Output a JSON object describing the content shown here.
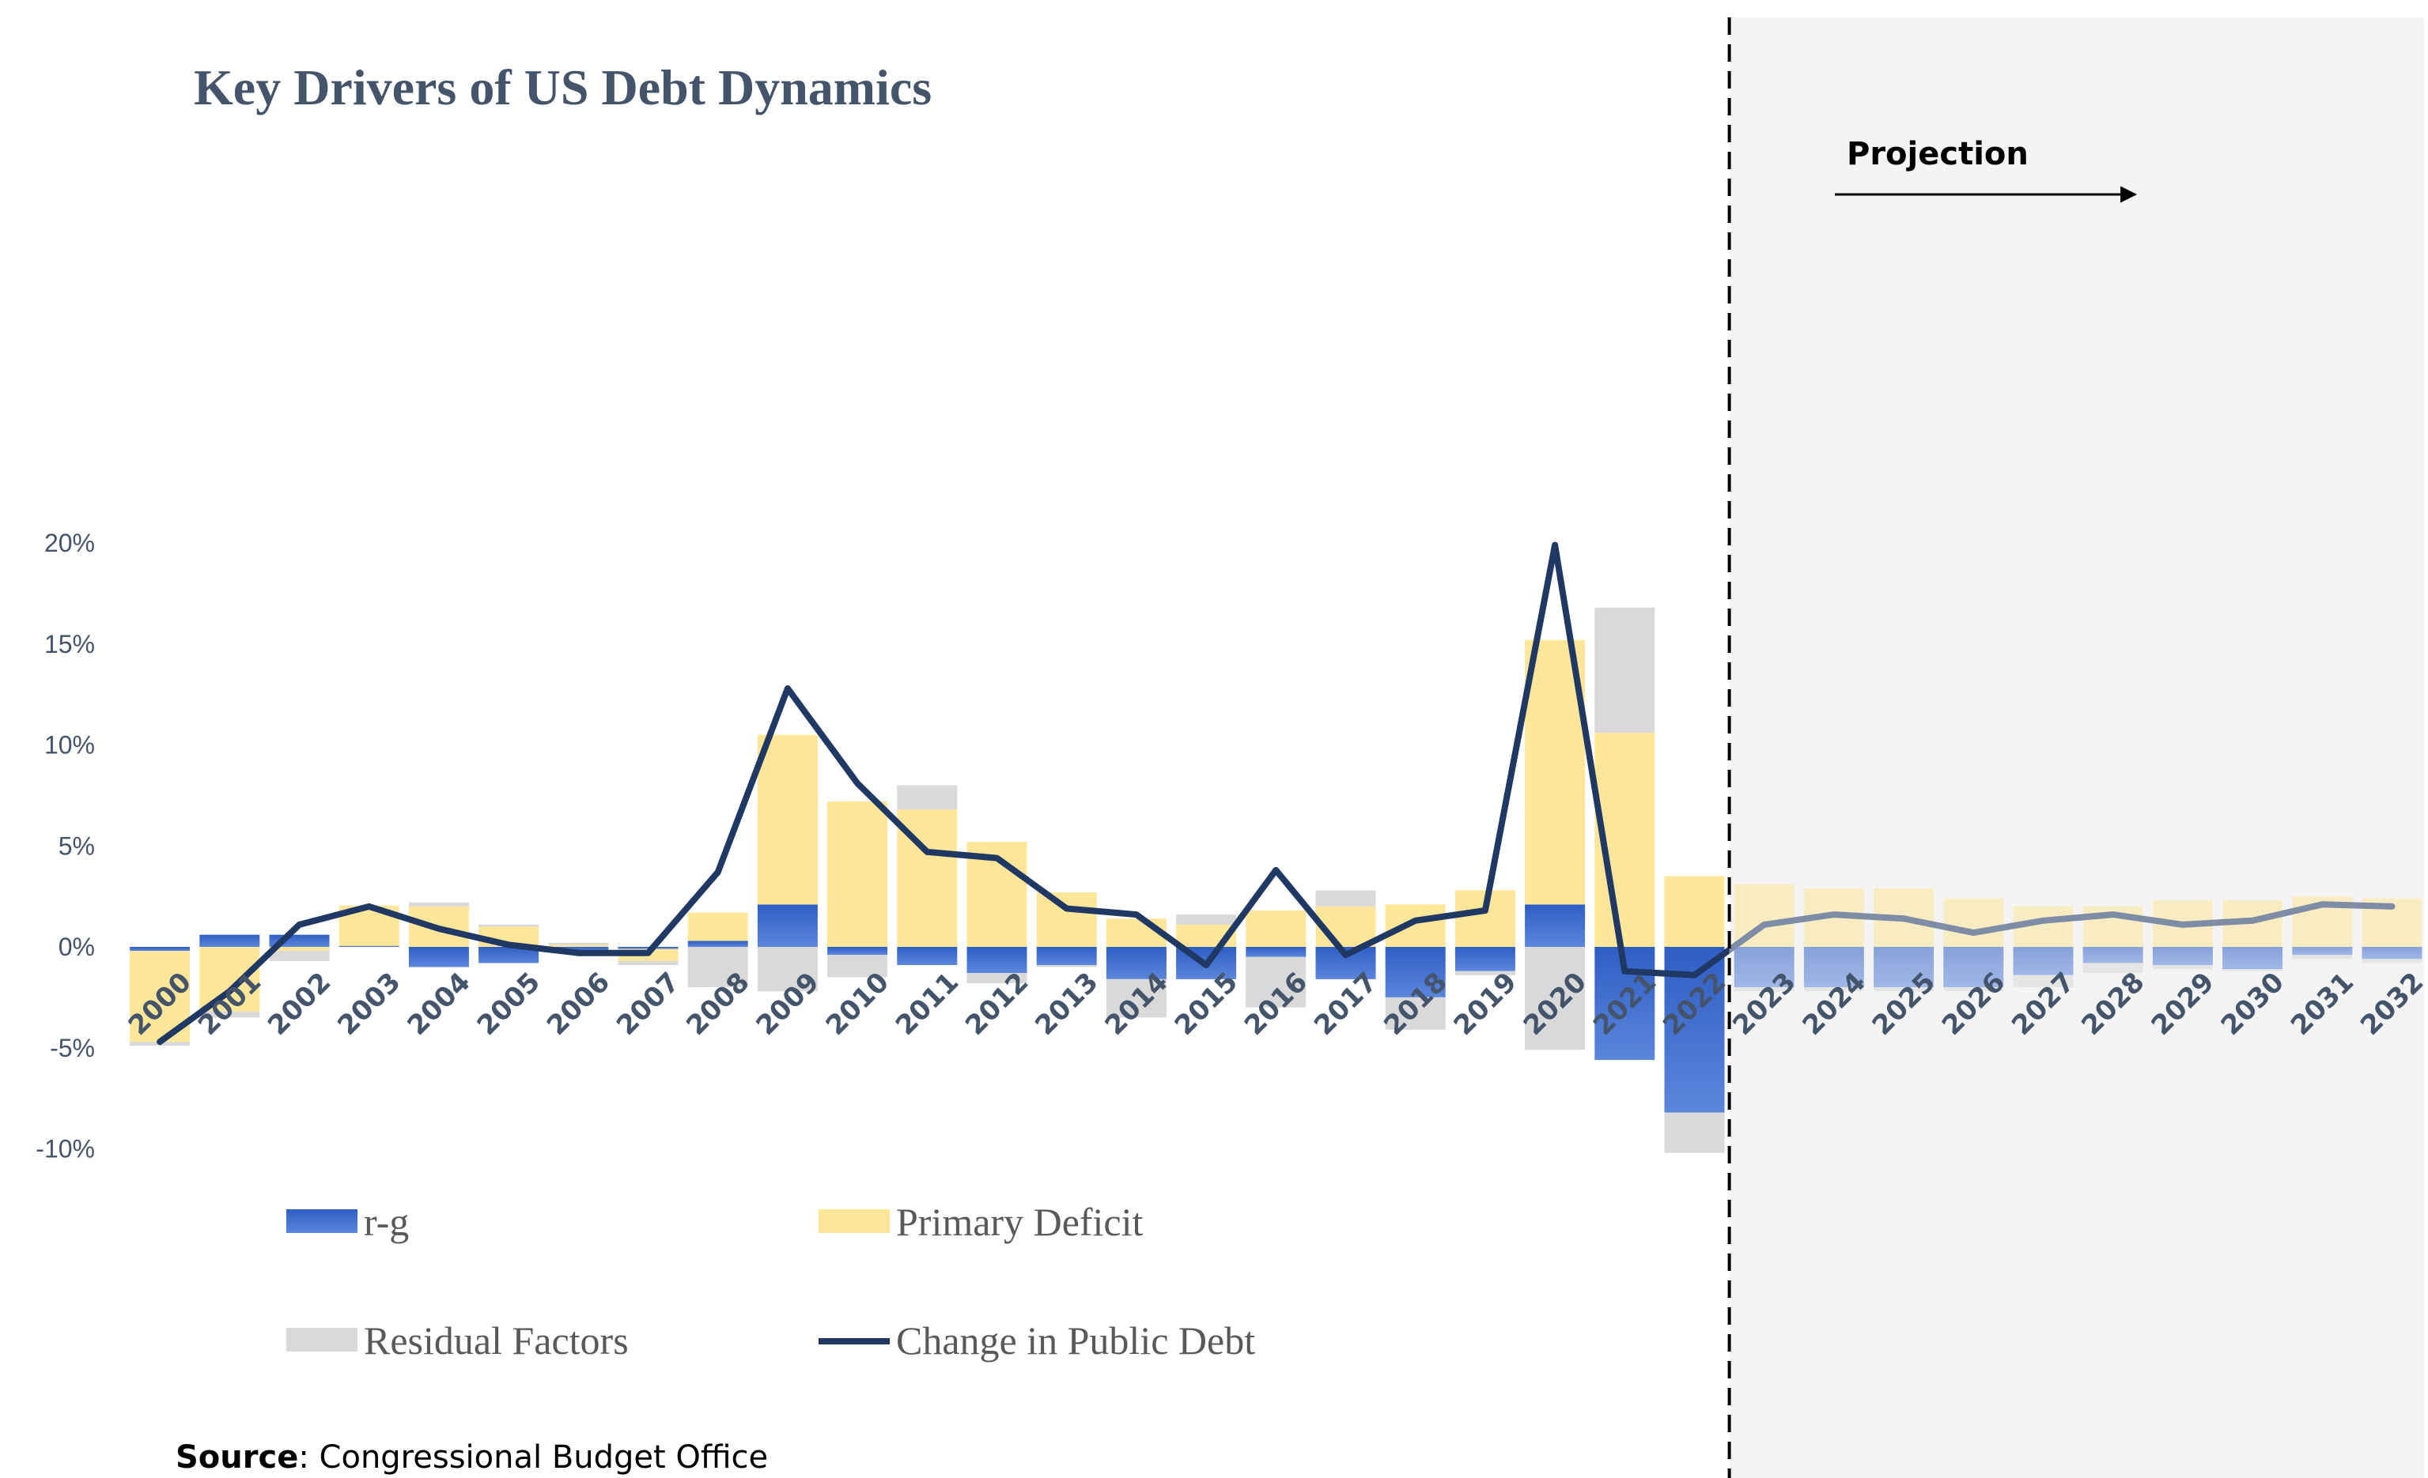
{
  "chart_data": {
    "type": "bar",
    "title": "Key Drivers of US Debt Dynamics",
    "categories": [
      "2000",
      "2001",
      "2002",
      "2003",
      "2004",
      "2005",
      "2006",
      "2007",
      "2008",
      "2009",
      "2010",
      "2011",
      "2012",
      "2013",
      "2014",
      "2015",
      "2016",
      "2017",
      "2018",
      "2019",
      "2020",
      "2021",
      "2022",
      "2023",
      "2024",
      "2025",
      "2026",
      "2027",
      "2028",
      "2029",
      "2030",
      "2031",
      "2032"
    ],
    "ylim": [
      -10,
      20
    ],
    "yticks": [
      "-10%",
      "-5%",
      "0%",
      "5%",
      "10%",
      "15%",
      "20%"
    ],
    "ytick_values": [
      -10,
      -5,
      0,
      5,
      10,
      15,
      20
    ],
    "stacked": true,
    "series": [
      {
        "name": "r-g",
        "kind": "bar",
        "color": "#3a66c8",
        "values": [
          -0.2,
          0.6,
          0.6,
          0.05,
          -1.0,
          -0.8,
          -0.2,
          -0.1,
          0.3,
          2.1,
          -0.4,
          -0.9,
          -1.3,
          -0.9,
          -1.6,
          -1.6,
          -0.5,
          -1.6,
          -2.5,
          -1.2,
          2.1,
          -5.6,
          -8.2,
          -2.0,
          -2.0,
          -2.0,
          -2.0,
          -1.4,
          -0.8,
          -0.9,
          -1.1,
          -0.4,
          -0.6
        ]
      },
      {
        "name": "Primary Deficit",
        "kind": "bar",
        "color": "#ffe699",
        "values": [
          -4.5,
          -3.2,
          -0.2,
          2.0,
          2.0,
          1.0,
          0.1,
          -0.6,
          1.4,
          8.4,
          7.2,
          6.8,
          5.2,
          2.7,
          1.4,
          1.1,
          1.8,
          2.0,
          2.1,
          2.8,
          13.1,
          10.6,
          3.5,
          3.1,
          2.9,
          2.9,
          2.4,
          2.0,
          2.0,
          2.3,
          2.3,
          2.5,
          2.4
        ]
      },
      {
        "name": "Residual Factors",
        "kind": "bar",
        "color": "#d9d9d9",
        "values": [
          -0.2,
          -0.3,
          -0.5,
          0.0,
          0.2,
          0.1,
          0.1,
          -0.2,
          -2.0,
          -2.2,
          -1.1,
          1.2,
          -0.5,
          -0.1,
          -1.9,
          0.5,
          -2.5,
          0.8,
          -1.6,
          -0.2,
          -5.1,
          6.2,
          -2.0,
          -0.2,
          -0.2,
          -0.2,
          -0.2,
          -0.6,
          -0.5,
          -0.2,
          -0.1,
          -0.2,
          -0.2
        ]
      },
      {
        "name": "Change in Public Debt",
        "kind": "line",
        "color": "#1f3864",
        "values": [
          -4.7,
          -2.2,
          1.1,
          2.0,
          0.9,
          0.1,
          -0.3,
          -0.3,
          3.7,
          12.8,
          8.1,
          4.7,
          4.4,
          1.9,
          1.6,
          -0.9,
          3.8,
          -0.4,
          1.3,
          1.8,
          19.9,
          -1.2,
          -1.4,
          1.1,
          1.6,
          1.4,
          0.7,
          1.3,
          1.6,
          1.1,
          1.3,
          2.1,
          2.0
        ]
      }
    ],
    "projection_start": "2023",
    "projection_label": "Projection",
    "legend_placement": "bottom-left",
    "grid": false
  },
  "source": {
    "label": "Source",
    "text": ": Congressional Budget Office"
  }
}
